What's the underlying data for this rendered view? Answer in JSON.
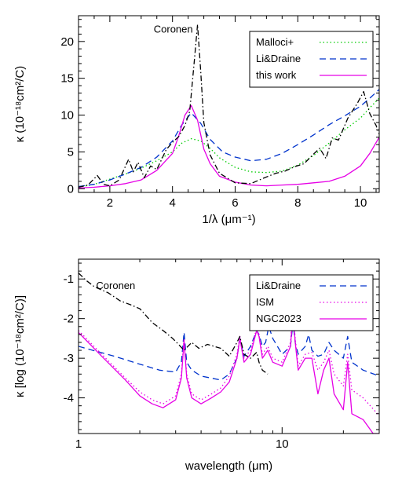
{
  "chart_data": [
    {
      "type": "line",
      "xlabel": "1/λ (μm⁻¹)",
      "ylabel": "κ  (10⁻¹⁸cm²/C)",
      "xlim": [
        1.0,
        10.6
      ],
      "ylim": [
        -0.5,
        23.5
      ],
      "xscale": "linear",
      "xticks": [
        2,
        4,
        6,
        8,
        10
      ],
      "yticks": [
        0,
        5,
        10,
        15,
        20
      ],
      "annotation": {
        "text": "Coronen",
        "x": 3.4,
        "y": 21.2
      },
      "legend_position": "top-right",
      "series": [
        {
          "name": "Malloci+",
          "color": "#00cc00",
          "dash": "dotted",
          "x": [
            1.0,
            1.5,
            2.0,
            2.5,
            3.0,
            3.5,
            4.0,
            4.3,
            4.6,
            4.9,
            5.2,
            5.5,
            6.0,
            6.5,
            7.0,
            7.5,
            8.0,
            8.5,
            9.0,
            9.5,
            10.0,
            10.3,
            10.6
          ],
          "y": [
            0.2,
            0.6,
            1.3,
            2.0,
            2.8,
            3.8,
            5.0,
            6.2,
            6.8,
            6.5,
            5.5,
            4.2,
            2.9,
            2.3,
            2.2,
            2.4,
            3.2,
            4.5,
            6.2,
            8.0,
            9.6,
            11.0,
            12.3
          ]
        },
        {
          "name": "Li&Draine",
          "color": "#0033cc",
          "dash": "dashed",
          "x": [
            1.0,
            1.5,
            2.0,
            2.5,
            3.0,
            3.5,
            4.0,
            4.3,
            4.6,
            4.9,
            5.2,
            5.6,
            6.0,
            6.5,
            7.0,
            7.5,
            8.0,
            8.5,
            9.0,
            9.5,
            10.0,
            10.3,
            10.6
          ],
          "y": [
            0.3,
            0.6,
            1.2,
            2.0,
            2.9,
            4.3,
            6.5,
            8.7,
            10.3,
            8.9,
            6.7,
            5.0,
            4.3,
            3.8,
            4.0,
            4.8,
            6.0,
            7.3,
            8.7,
            9.9,
            11.2,
            12.3,
            13.5
          ]
        },
        {
          "name": "this work",
          "color": "#e600e6",
          "dash": "solid",
          "x": [
            1.0,
            1.5,
            2.0,
            2.5,
            3.0,
            3.5,
            4.0,
            4.2,
            4.4,
            4.6,
            4.8,
            5.0,
            5.2,
            5.5,
            6.0,
            6.5,
            7.0,
            7.5,
            8.0,
            8.5,
            9.0,
            9.5,
            10.0,
            10.3,
            10.6
          ],
          "y": [
            0.1,
            0.2,
            0.4,
            0.7,
            1.2,
            2.5,
            4.8,
            7.2,
            10.0,
            11.3,
            9.3,
            5.4,
            3.4,
            1.7,
            0.9,
            0.5,
            0.4,
            0.5,
            0.6,
            0.8,
            1.0,
            1.7,
            3.1,
            4.8,
            7.0
          ]
        },
        {
          "name": "Coronen",
          "color": "#000000",
          "dash": "dashdot",
          "x": [
            1.0,
            1.3,
            1.6,
            1.8,
            2.0,
            2.3,
            2.6,
            2.75,
            2.9,
            3.1,
            3.3,
            3.5,
            3.8,
            4.0,
            4.2,
            4.4,
            4.55,
            4.7,
            4.8,
            4.9,
            5.0,
            5.2,
            5.5,
            6.0,
            6.5,
            7.0,
            7.3,
            7.6,
            7.9,
            8.2,
            8.5,
            8.7,
            8.9,
            9.1,
            9.3,
            9.6,
            9.9,
            10.1,
            10.3,
            10.5,
            10.6
          ],
          "y": [
            0.2,
            0.5,
            1.8,
            0.6,
            0.4,
            1.2,
            4.0,
            2.3,
            3.6,
            1.5,
            3.1,
            2.6,
            5.3,
            6.3,
            7.1,
            8.6,
            10.5,
            17.5,
            22.3,
            16.0,
            9.0,
            4.6,
            2.1,
            0.8,
            0.7,
            1.6,
            2.1,
            2.4,
            3.0,
            3.4,
            4.7,
            5.5,
            4.1,
            6.9,
            6.6,
            9.6,
            11.6,
            13.2,
            10.2,
            8.6,
            7.4
          ]
        }
      ]
    },
    {
      "type": "line",
      "xlabel": "wavelength (μm)",
      "ylabel": "κ  [log (10⁻¹⁸cm²/C)]",
      "xlim": [
        1.0,
        30.0
      ],
      "ylim": [
        -4.9,
        -0.5
      ],
      "xscale": "log",
      "xticks": [
        1,
        10
      ],
      "yticks": [
        -1,
        -2,
        -3,
        -4
      ],
      "annotation": {
        "text": "Coronen",
        "x": 1.22,
        "y": -1.25
      },
      "legend_position": "top-right",
      "series": [
        {
          "name": "Li&Draine",
          "color": "#0033cc",
          "dash": "dashed",
          "x": [
            1.0,
            1.5,
            2.0,
            2.5,
            3.0,
            3.2,
            3.3,
            3.4,
            3.6,
            4.0,
            5.0,
            5.5,
            6.0,
            6.2,
            6.5,
            7.0,
            7.5,
            7.7,
            8.0,
            8.3,
            8.6,
            9.0,
            10.0,
            11.0,
            11.3,
            11.6,
            12.0,
            13.0,
            13.5,
            14.0,
            15.0,
            16.0,
            17.0,
            18.0,
            20.0,
            21.0,
            22.0,
            25.0,
            30.0
          ],
          "y": [
            -2.7,
            -2.95,
            -3.15,
            -3.3,
            -3.35,
            -3.1,
            -2.35,
            -3.1,
            -3.3,
            -3.45,
            -3.55,
            -3.4,
            -3.0,
            -2.5,
            -2.95,
            -2.7,
            -2.3,
            -2.4,
            -2.7,
            -2.6,
            -2.2,
            -2.5,
            -2.9,
            -2.7,
            -2.1,
            -2.6,
            -2.9,
            -2.7,
            -2.4,
            -2.8,
            -2.95,
            -2.9,
            -2.6,
            -2.8,
            -3.0,
            -2.45,
            -3.1,
            -3.3,
            -3.45
          ]
        },
        {
          "name": "ISM",
          "color": "#e600e6",
          "dash": "dotted",
          "x": [
            1.0,
            1.3,
            1.7,
            2.0,
            2.3,
            2.6,
            3.0,
            3.2,
            3.3,
            3.4,
            3.6,
            4.0,
            4.5,
            5.0,
            5.5,
            6.0,
            6.2,
            6.5,
            7.0,
            7.5,
            7.7,
            8.0,
            8.5,
            9.0,
            10.0,
            11.0,
            11.3,
            11.6,
            12.0,
            13.0,
            14.0,
            15.0,
            16.0,
            17.0,
            18.0,
            20.0,
            21.0,
            22.0,
            25.0,
            30.0
          ],
          "y": [
            -2.3,
            -2.9,
            -3.5,
            -3.85,
            -4.05,
            -4.15,
            -3.95,
            -3.4,
            -2.5,
            -3.4,
            -3.9,
            -4.05,
            -3.9,
            -3.75,
            -3.45,
            -2.9,
            -2.45,
            -3.0,
            -2.8,
            -2.25,
            -2.4,
            -2.9,
            -2.7,
            -3.0,
            -3.1,
            -2.6,
            -1.75,
            -2.5,
            -3.2,
            -2.9,
            -2.85,
            -3.3,
            -3.1,
            -2.8,
            -3.4,
            -3.7,
            -2.9,
            -3.8,
            -4.0,
            -4.45
          ]
        },
        {
          "name": "NGC2023",
          "color": "#e600e6",
          "dash": "solid",
          "x": [
            1.0,
            1.3,
            1.7,
            2.0,
            2.3,
            2.6,
            3.0,
            3.2,
            3.3,
            3.4,
            3.6,
            4.0,
            4.5,
            5.0,
            5.5,
            6.0,
            6.2,
            6.5,
            7.0,
            7.5,
            7.7,
            8.0,
            8.5,
            9.0,
            10.0,
            11.0,
            11.3,
            11.6,
            12.0,
            13.0,
            14.0,
            15.0,
            16.0,
            17.0,
            18.0,
            20.0,
            21.0,
            22.0,
            25.0,
            28.0,
            30.0
          ],
          "y": [
            -2.35,
            -2.95,
            -3.55,
            -3.95,
            -4.15,
            -4.25,
            -4.05,
            -3.5,
            -2.55,
            -3.5,
            -4.0,
            -4.15,
            -4.0,
            -3.85,
            -3.6,
            -3.0,
            -2.5,
            -3.1,
            -2.9,
            -2.3,
            -2.45,
            -3.0,
            -2.8,
            -3.1,
            -3.2,
            -2.7,
            -1.85,
            -2.6,
            -3.3,
            -3.0,
            -3.0,
            -3.9,
            -3.3,
            -3.0,
            -3.9,
            -4.3,
            -3.1,
            -4.4,
            -4.55,
            -4.9,
            -4.9
          ]
        },
        {
          "name": "Coronen",
          "color": "#000000",
          "dash": "dashdot",
          "x": [
            1.0,
            1.1,
            1.2,
            1.4,
            1.6,
            1.8,
            2.0,
            2.3,
            2.6,
            2.9,
            3.1,
            3.3,
            3.6,
            3.9,
            4.3,
            5.0,
            5.5,
            6.0,
            6.2,
            6.5,
            7.0,
            7.5,
            7.7,
            8.0,
            8.5
          ],
          "y": [
            -0.85,
            -1.05,
            -1.2,
            -1.35,
            -1.55,
            -1.65,
            -1.75,
            -2.1,
            -2.3,
            -2.5,
            -2.65,
            -2.8,
            -2.6,
            -2.75,
            -2.65,
            -2.75,
            -2.95,
            -2.6,
            -2.45,
            -2.9,
            -3.0,
            -2.85,
            -3.1,
            -3.3,
            -3.4
          ]
        }
      ]
    }
  ]
}
